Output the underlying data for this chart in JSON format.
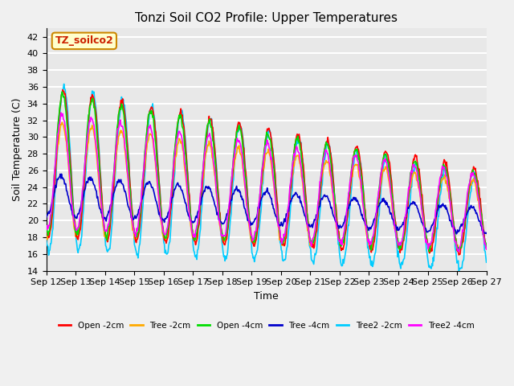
{
  "title": "Tonzi Soil CO2 Profile: Upper Temperatures",
  "xlabel": "Time",
  "ylabel": "Soil Temperature (C)",
  "ylim": [
    14,
    43
  ],
  "yticks": [
    14,
    16,
    18,
    20,
    22,
    24,
    26,
    28,
    30,
    32,
    34,
    36,
    38,
    40,
    42
  ],
  "x_labels": [
    "Sep 12",
    "Sep 13",
    "Sep 14",
    "Sep 15",
    "Sep 16",
    "Sep 17",
    "Sep 18",
    "Sep 19",
    "Sep 20",
    "Sep 21",
    "Sep 22",
    "Sep 23",
    "Sep 24",
    "Sep 25",
    "Sep 26",
    "Sep 27"
  ],
  "legend_entries": [
    "Open -2cm",
    "Tree -2cm",
    "Open -4cm",
    "Tree -4cm",
    "Tree2 -2cm",
    "Tree2 -4cm"
  ],
  "legend_colors": [
    "#ff0000",
    "#ffaa00",
    "#00dd00",
    "#0000cc",
    "#00ccff",
    "#ff00ff"
  ],
  "annotation_text": "TZ_soilco2",
  "annotation_bg": "#ffffcc",
  "annotation_border": "#cc8800",
  "background_color": "#e8e8e8",
  "grid_color": "#ffffff",
  "n_days": 15,
  "points_per_day": 48,
  "series": {
    "open_2cm": {
      "color": "#ff0000",
      "label": "Open -2cm"
    },
    "tree_2cm": {
      "color": "#ffaa00",
      "label": "Tree -2cm"
    },
    "open_4cm": {
      "color": "#00dd00",
      "label": "Open -4cm"
    },
    "tree_4cm": {
      "color": "#0000cc",
      "label": "Tree -4cm"
    },
    "tree2_2cm": {
      "color": "#00ccff",
      "label": "Tree2 -2cm"
    },
    "tree2_4cm": {
      "color": "#ff00ff",
      "label": "Tree2 -4cm"
    }
  }
}
